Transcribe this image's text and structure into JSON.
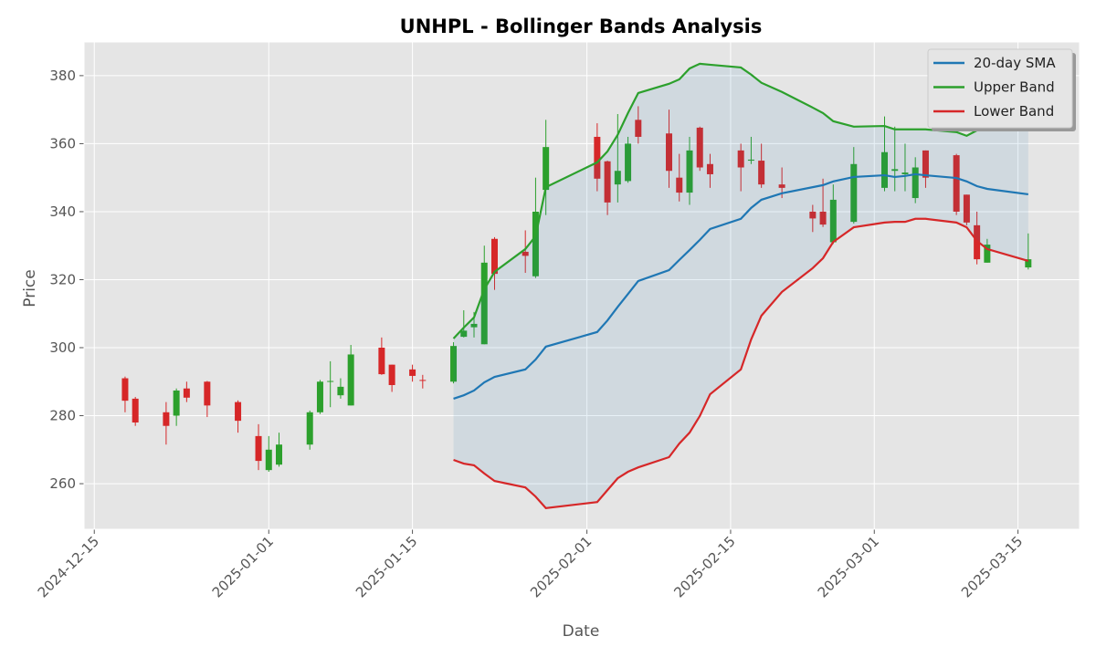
{
  "chart_data": {
    "type": "candlestick",
    "title": "UNHPL - Bollinger Bands Analysis",
    "x_label": "Date",
    "y_label": "Price",
    "x": [
      "2024-12-18",
      "2024-12-19",
      "2024-12-22",
      "2024-12-23",
      "2024-12-24",
      "2024-12-26",
      "2024-12-29",
      "2024-12-31",
      "2025-01-01",
      "2025-01-02",
      "2025-01-05",
      "2025-01-06",
      "2025-01-07",
      "2025-01-08",
      "2025-01-09",
      "2025-01-12",
      "2025-01-13",
      "2025-01-15",
      "2025-01-16",
      "2025-01-19",
      "2025-01-20",
      "2025-01-21",
      "2025-01-22",
      "2025-01-23",
      "2025-01-26",
      "2025-01-27",
      "2025-01-28",
      "2025-02-02",
      "2025-02-03",
      "2025-02-04",
      "2025-02-05",
      "2025-02-06",
      "2025-02-09",
      "2025-02-10",
      "2025-02-11",
      "2025-02-12",
      "2025-02-13",
      "2025-02-16",
      "2025-02-17",
      "2025-02-18",
      "2025-02-20",
      "2025-02-23",
      "2025-02-24",
      "2025-02-25",
      "2025-02-27",
      "2025-03-02",
      "2025-03-03",
      "2025-03-04",
      "2025-03-05",
      "2025-03-06",
      "2025-03-09",
      "2025-03-10",
      "2025-03-11",
      "2025-03-12",
      "2025-03-16"
    ],
    "open": [
      291,
      285,
      281,
      280,
      288,
      290,
      284,
      274,
      264,
      265.6,
      271.5,
      281,
      290,
      286,
      283,
      300,
      295,
      293.6,
      290.5,
      290,
      303.2,
      306,
      301,
      332,
      328.2,
      321,
      346.4,
      362,
      354.8,
      348,
      349,
      367,
      363,
      350,
      345.6,
      364.7,
      354,
      358,
      355,
      355,
      348,
      340,
      340,
      331,
      337,
      347,
      352,
      351,
      344,
      358,
      356.6,
      345,
      336,
      325,
      323.6
    ],
    "high": [
      291.5,
      285.5,
      284,
      288,
      290,
      290.2,
      284.5,
      277.5,
      274,
      275,
      281.5,
      290.5,
      296,
      291,
      300.8,
      303,
      295,
      295,
      292,
      301.6,
      311,
      310.5,
      330,
      332.5,
      334.5,
      350,
      367,
      366,
      355,
      368.7,
      362,
      371,
      370,
      357,
      362,
      365,
      357,
      360,
      362,
      360,
      353,
      342,
      349.7,
      348,
      359,
      368,
      365,
      360,
      356,
      358,
      357,
      345,
      340,
      332,
      333.6
    ],
    "low": [
      281,
      277,
      271.5,
      277,
      284,
      279.6,
      275,
      264,
      263.5,
      265,
      270,
      280.5,
      282.5,
      285,
      283,
      292,
      287,
      290,
      288,
      289.5,
      303,
      303,
      301,
      317,
      322,
      320.5,
      339,
      346,
      339,
      342.7,
      348.5,
      360,
      347,
      343,
      342,
      352,
      347,
      346,
      354,
      347,
      344,
      334,
      335.5,
      330.5,
      336.5,
      346,
      346,
      346,
      342.5,
      347,
      339,
      336,
      324.5,
      325,
      323
    ],
    "close": [
      284.4,
      278,
      277,
      287.4,
      285.3,
      283,
      278.5,
      266.7,
      270,
      271.5,
      281,
      290,
      290.2,
      288.5,
      298,
      292.2,
      289,
      291.7,
      290.3,
      300.5,
      305,
      307,
      325,
      321.7,
      327,
      340,
      359,
      349.7,
      342.7,
      352,
      360,
      362,
      352,
      345.6,
      358,
      353,
      351,
      353,
      355.3,
      348,
      347,
      338,
      336.2,
      343.5,
      354,
      357.5,
      352.5,
      351.5,
      353,
      350,
      340,
      336.8,
      326,
      330.3,
      326
    ],
    "up_color": "#2ca02c",
    "down_color": "#d62728",
    "fill_color": "#1f77b4",
    "series": [
      {
        "name": "20-day SMA",
        "color": "#1f77b4",
        "values": [
          null,
          null,
          null,
          null,
          null,
          null,
          null,
          null,
          null,
          null,
          null,
          null,
          null,
          null,
          null,
          null,
          null,
          null,
          null,
          285,
          286,
          287.4,
          289.8,
          291.4,
          293.6,
          296.5,
          300.3,
          304.6,
          308,
          312,
          315.8,
          319.6,
          322.8,
          325.8,
          328.7,
          331.7,
          334.9,
          337.9,
          341.1,
          343.5,
          345.4,
          347.2,
          347.8,
          348.9,
          350.2,
          350.7,
          350.2,
          350.5,
          351,
          350.7,
          349.9,
          348.9,
          347.5,
          346.7,
          345.1
        ]
      },
      {
        "name": "Upper Band",
        "color": "#2ca02c",
        "values": [
          null,
          null,
          null,
          null,
          null,
          null,
          null,
          null,
          null,
          null,
          null,
          null,
          null,
          null,
          null,
          null,
          null,
          null,
          null,
          302.7,
          305.9,
          308.9,
          317.2,
          322.3,
          329,
          332.8,
          347.2,
          354.5,
          357.7,
          362.6,
          369,
          374.9,
          377.6,
          378.9,
          382.1,
          383.5,
          383.2,
          382.4,
          380.3,
          377.9,
          375.2,
          370.6,
          369,
          366.6,
          365,
          365.2,
          364.2,
          364.2,
          364.2,
          364.2,
          363.4,
          362.3,
          363.9,
          365,
          365
        ]
      },
      {
        "name": "Lower Band",
        "color": "#d62728",
        "values": [
          null,
          null,
          null,
          null,
          null,
          null,
          null,
          null,
          null,
          null,
          null,
          null,
          null,
          null,
          null,
          null,
          null,
          null,
          null,
          267,
          265.9,
          265.4,
          263,
          260.8,
          258.9,
          256.2,
          252.8,
          254.6,
          258.1,
          261.6,
          263.5,
          264.8,
          267.8,
          271.8,
          275,
          279.9,
          286.3,
          293.6,
          302.4,
          309.4,
          316.4,
          323.4,
          326.3,
          331.1,
          335.4,
          336.8,
          337,
          337,
          337.9,
          337.9,
          336.8,
          335.4,
          331.4,
          329,
          325.5
        ]
      }
    ],
    "xlim": [
      "2024-12-14",
      "2025-03-21"
    ],
    "xticks": [
      "2024-12-15",
      "2025-01-01",
      "2025-01-15",
      "2025-02-01",
      "2025-02-15",
      "2025-03-01",
      "2025-03-15"
    ],
    "ylim": [
      246.6,
      389.9
    ],
    "yticks": [
      260,
      280,
      300,
      320,
      340,
      360,
      380
    ],
    "grid": true,
    "legend": "upper right"
  }
}
